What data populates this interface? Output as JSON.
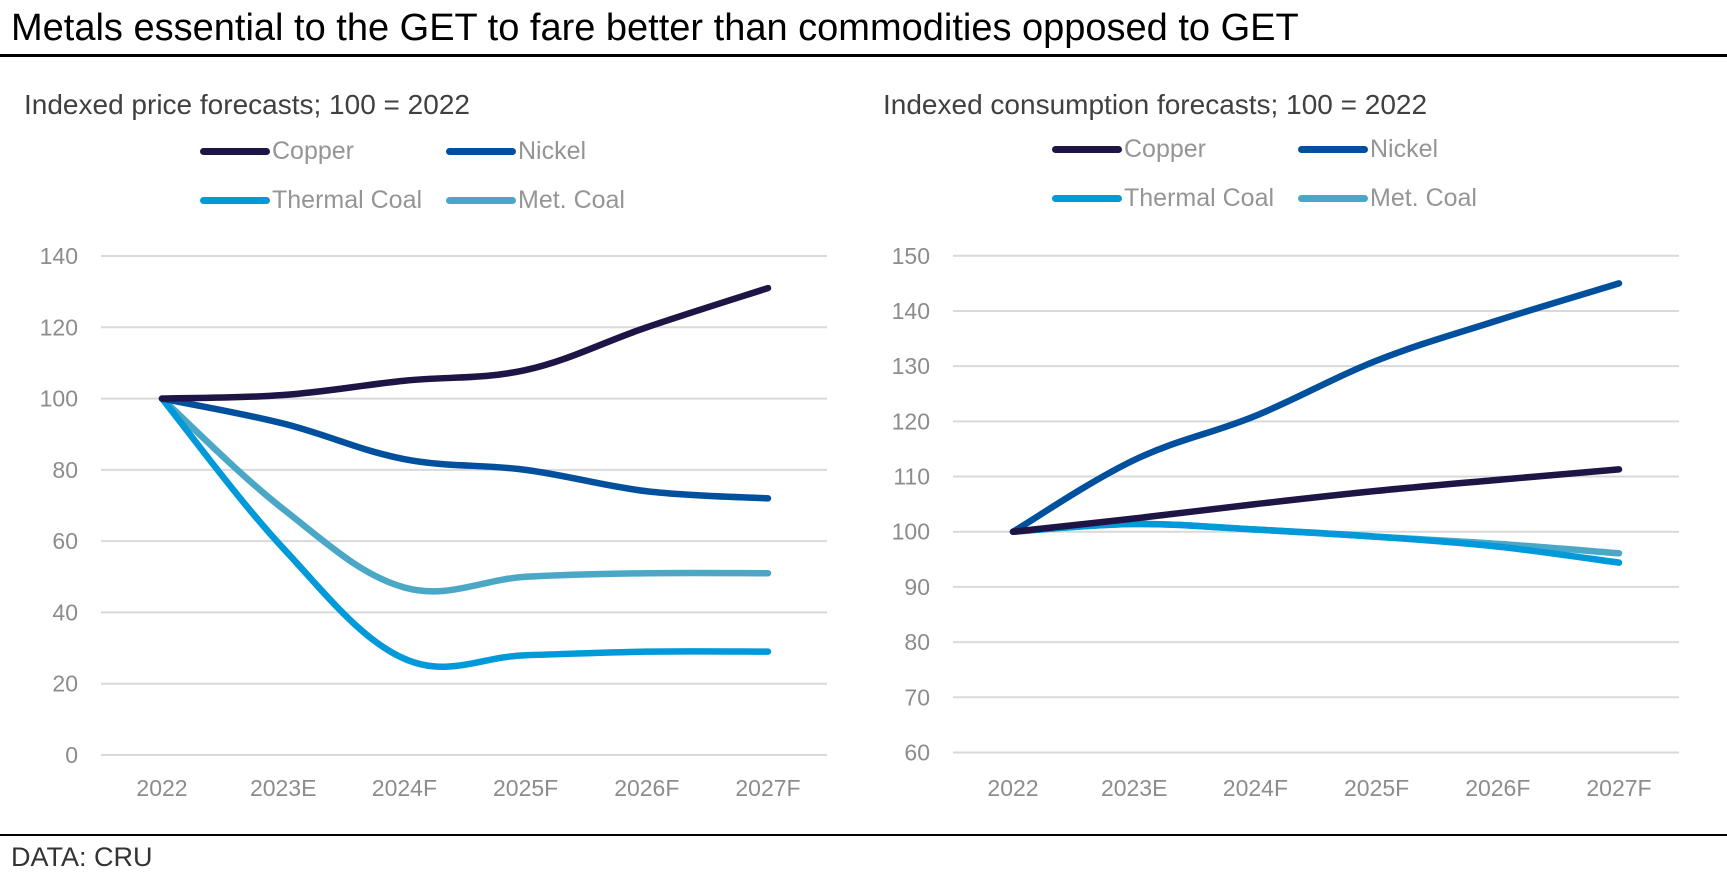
{
  "header": {
    "title": "Metals essential to the GET to fare better than commodities opposed to GET"
  },
  "footer": {
    "source": "DATA: CRU"
  },
  "colors": {
    "Copper": "#1e1446",
    "Nickel": "#00509e",
    "Thermal Coal": "#009adb",
    "Met. Coal": "#4aa8c6",
    "grid": "#d9d9d9",
    "tick_text": "#8c8c8c"
  },
  "chart_data": [
    {
      "type": "line",
      "title": "Indexed price forecasts; 100 = 2022",
      "xlabel": "",
      "ylabel": "",
      "categories": [
        "2022",
        "2023E",
        "2024F",
        "2025F",
        "2026F",
        "2027F"
      ],
      "ylim": [
        0,
        140
      ],
      "yticks": [
        0,
        20,
        40,
        60,
        80,
        100,
        120,
        140
      ],
      "grid": true,
      "smooth": true,
      "legend_position": "top",
      "legend": [
        "Copper",
        "Nickel",
        "Thermal Coal",
        "Met. Coal"
      ],
      "series": [
        {
          "name": "Copper",
          "values": [
            100,
            101,
            105,
            108,
            120,
            131
          ]
        },
        {
          "name": "Nickel",
          "values": [
            100,
            93,
            83,
            80,
            74,
            72
          ]
        },
        {
          "name": "Thermal Coal",
          "values": [
            100,
            58,
            27,
            28,
            29,
            29
          ]
        },
        {
          "name": "Met. Coal",
          "values": [
            100,
            69,
            47,
            50,
            51,
            51
          ]
        }
      ]
    },
    {
      "type": "line",
      "title": "Indexed consumption forecasts; 100 = 2022",
      "xlabel": "",
      "ylabel": "",
      "categories": [
        "2022",
        "2023E",
        "2024F",
        "2025F",
        "2026F",
        "2027F"
      ],
      "ylim": [
        60,
        150
      ],
      "yticks": [
        60,
        70,
        80,
        90,
        100,
        110,
        120,
        130,
        140,
        150
      ],
      "grid": true,
      "smooth": true,
      "legend_position": "top",
      "legend": [
        "Copper",
        "Nickel",
        "Thermal Coal",
        "Met. Coal"
      ],
      "series": [
        {
          "name": "Copper",
          "values": [
            100,
            102.4,
            105,
            107.4,
            109.4,
            111.3
          ]
        },
        {
          "name": "Nickel",
          "values": [
            100,
            113,
            121,
            131,
            138.3,
            145
          ]
        },
        {
          "name": "Thermal Coal",
          "values": [
            100,
            101.4,
            100.4,
            99.1,
            97.3,
            94.4
          ]
        },
        {
          "name": "Met. Coal",
          "values": [
            100,
            101.4,
            100.4,
            99.1,
            97.8,
            96.1
          ]
        }
      ]
    }
  ]
}
